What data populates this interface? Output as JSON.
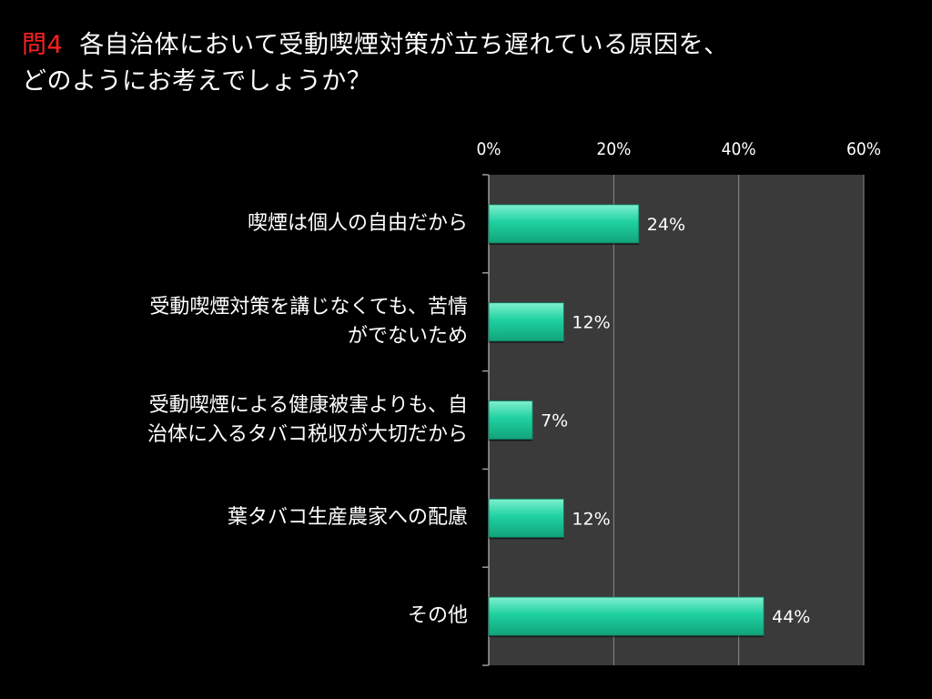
{
  "title": {
    "question_number": "問4",
    "line1": "各自治体において受動喫煙対策が立ち遅れている原因を、",
    "line2": "どのようにお考えでしょうか？"
  },
  "colors": {
    "background": "#000000",
    "plot_area": "#3a3a3a",
    "bar": "#1fd1a0",
    "bar_highlight": "#7ff0cf",
    "gridline": "#8a8a8a",
    "question_number": "#ff2020"
  },
  "chart_data": {
    "type": "bar",
    "orientation": "horizontal",
    "categories": [
      [
        "喫煙は個人の自由だから"
      ],
      [
        "受動喫煙対策を講じなくても、苦情",
        "がでないため"
      ],
      [
        "受動喫煙による健康被害よりも、自",
        "治体に入るタバコ税収が大切だから"
      ],
      [
        "葉タバコ生産農家への配慮"
      ],
      [
        "その他"
      ]
    ],
    "values": [
      24,
      12,
      7,
      12,
      44
    ],
    "value_labels": [
      "24%",
      "12%",
      "7%",
      "12%",
      "44%"
    ],
    "xlim": [
      0,
      60
    ],
    "ticks": [
      0,
      20,
      40,
      60
    ],
    "tick_labels": [
      "0%",
      "20%",
      "40%",
      "60%"
    ],
    "axis_position": "top",
    "grid": true,
    "legend": false
  }
}
